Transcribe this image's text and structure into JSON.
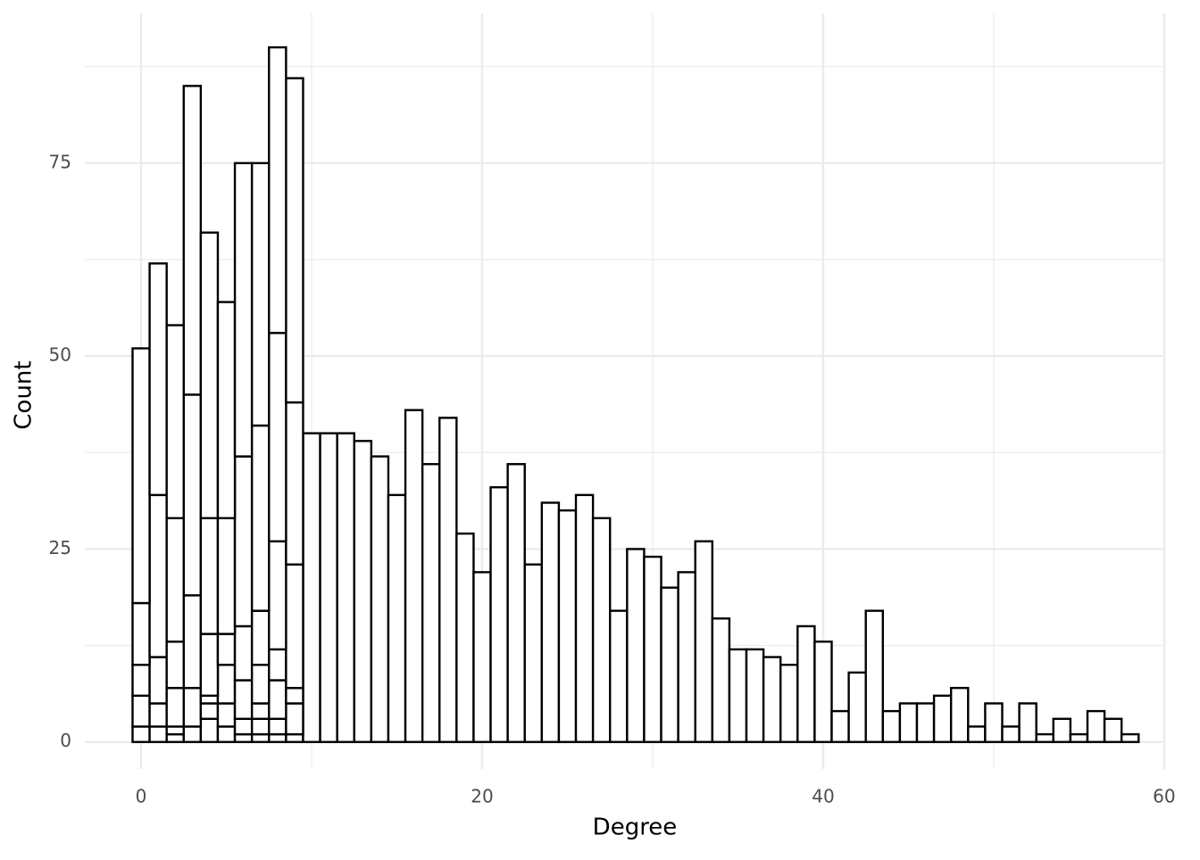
{
  "chart_data": {
    "type": "histogram",
    "xlabel": "Degree",
    "ylabel": "Count",
    "bins": [
      -0.5,
      0.5,
      1.5,
      2.5,
      3.5,
      4.5,
      5.5,
      6.5,
      7.5,
      8.5,
      9.5,
      10.5,
      11.5,
      12.5,
      13.5,
      14.5,
      15.5,
      16.5,
      17.5,
      18.5,
      19.5,
      20.5,
      21.5,
      22.5,
      23.5,
      24.5,
      25.5,
      26.5,
      27.5,
      28.5,
      29.5,
      30.5,
      31.5,
      32.5,
      33.5,
      34.5,
      35.5,
      36.5,
      37.5,
      38.5,
      39.5,
      40.5,
      41.5,
      42.5,
      43.5,
      44.5,
      45.5,
      46.5,
      47.5,
      48.5,
      49.5,
      50.5,
      51.5,
      52.5,
      53.5,
      54.5,
      55.5,
      56.5,
      57.5,
      58.5
    ],
    "series": [
      {
        "color": "#ffffff",
        "values": [
          2,
          2,
          1,
          2,
          3,
          2,
          1,
          1,
          1,
          1,
          40,
          40,
          40,
          39,
          37,
          32,
          43,
          36,
          42,
          27,
          22,
          33,
          36,
          23,
          31,
          30,
          32,
          29,
          17,
          25,
          24,
          20,
          22,
          26,
          16,
          12,
          12,
          11,
          10,
          15,
          13,
          4,
          9,
          17,
          4,
          5,
          5,
          6,
          7,
          2,
          5,
          2,
          5,
          1,
          3,
          1,
          4,
          3,
          1
        ]
      },
      {
        "color": "#ffffff",
        "values": [
          4,
          3,
          1,
          5,
          2,
          3,
          2,
          2,
          2,
          4,
          0,
          0,
          0,
          0,
          0,
          0,
          0,
          0,
          0,
          0,
          0,
          0,
          0,
          0,
          0,
          0,
          0,
          0,
          0,
          0,
          0,
          0,
          0,
          0,
          0,
          0,
          0,
          0,
          0,
          0,
          0,
          0,
          0,
          0,
          0,
          0,
          0,
          0,
          0,
          0,
          0,
          0,
          0,
          0,
          0,
          0,
          0,
          0,
          0
        ]
      },
      {
        "color": "#ffffff",
        "values": [
          4,
          6,
          5,
          12,
          1,
          5,
          5,
          2,
          5,
          2,
          0,
          0,
          0,
          0,
          0,
          0,
          0,
          0,
          0,
          0,
          0,
          0,
          0,
          0,
          0,
          0,
          0,
          0,
          0,
          0,
          0,
          0,
          0,
          0,
          0,
          0,
          0,
          0,
          0,
          0,
          0,
          0,
          0,
          0,
          0,
          0,
          0,
          0,
          0,
          0,
          0,
          0,
          0,
          0,
          0,
          0,
          0,
          0,
          0
        ]
      },
      {
        "color": "#ffffff",
        "values": [
          8,
          21,
          6,
          26,
          8,
          4,
          7,
          5,
          4,
          16,
          0,
          0,
          0,
          0,
          0,
          0,
          0,
          0,
          0,
          0,
          0,
          0,
          0,
          0,
          0,
          0,
          0,
          0,
          0,
          0,
          0,
          0,
          0,
          0,
          0,
          0,
          0,
          0,
          0,
          0,
          0,
          0,
          0,
          0,
          0,
          0,
          0,
          0,
          0,
          0,
          0,
          0,
          0,
          0,
          0,
          0,
          0,
          0,
          0
        ]
      },
      {
        "color": "#ffffff",
        "values": [
          33,
          30,
          16,
          40,
          15,
          15,
          22,
          7,
          14,
          21,
          0,
          0,
          0,
          0,
          0,
          0,
          0,
          0,
          0,
          0,
          0,
          0,
          0,
          0,
          0,
          0,
          0,
          0,
          0,
          0,
          0,
          0,
          0,
          0,
          0,
          0,
          0,
          0,
          0,
          0,
          0,
          0,
          0,
          0,
          0,
          0,
          0,
          0,
          0,
          0,
          0,
          0,
          0,
          0,
          0,
          0,
          0,
          0,
          0
        ]
      },
      {
        "color": "#ffffff",
        "values": [
          0,
          0,
          25,
          0,
          37,
          28,
          38,
          24,
          27,
          42,
          0,
          0,
          0,
          0,
          0,
          0,
          0,
          0,
          0,
          0,
          0,
          0,
          0,
          0,
          0,
          0,
          0,
          0,
          0,
          0,
          0,
          0,
          0,
          0,
          0,
          0,
          0,
          0,
          0,
          0,
          0,
          0,
          0,
          0,
          0,
          0,
          0,
          0,
          0,
          0,
          0,
          0,
          0,
          0,
          0,
          0,
          0,
          0,
          0
        ]
      },
      {
        "color": "#ffffff",
        "values": [
          0,
          0,
          0,
          0,
          0,
          0,
          0,
          34,
          37,
          0,
          0,
          0,
          0,
          0,
          0,
          0,
          0,
          0,
          0,
          0,
          0,
          0,
          0,
          0,
          0,
          0,
          0,
          0,
          0,
          0,
          0,
          0,
          0,
          0,
          0,
          0,
          0,
          0,
          0,
          0,
          0,
          0,
          0,
          0,
          0,
          0,
          0,
          0,
          0,
          0,
          0,
          0,
          0,
          0,
          0,
          0,
          0,
          0,
          0
        ]
      }
    ],
    "stroke": "#000000",
    "xlim": [
      -3.3,
      59.9
    ],
    "ylim": [
      -3.5,
      94.4
    ],
    "xticks": [
      0,
      20,
      40,
      60
    ],
    "yticks": [
      0,
      25,
      50,
      75
    ],
    "x_minor_grid": [
      10,
      30,
      50
    ],
    "y_minor_grid": [
      12.5,
      37.5,
      62.5,
      87.5
    ],
    "grid": true
  }
}
